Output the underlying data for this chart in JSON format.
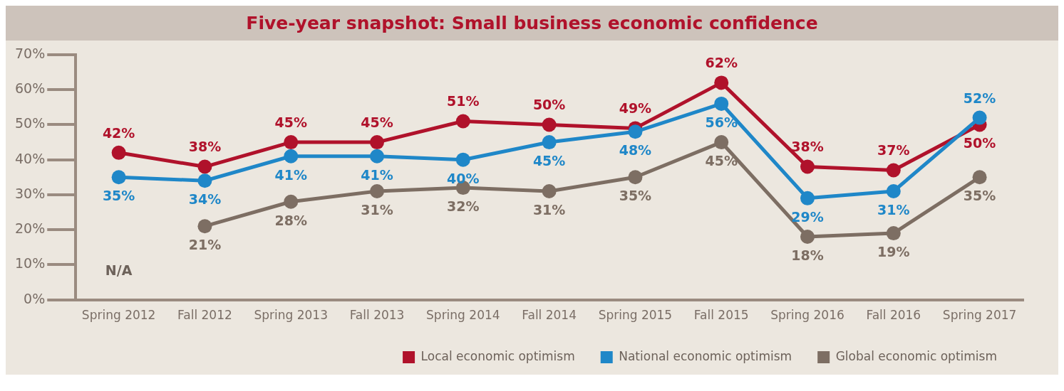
{
  "chart_data": {
    "type": "line",
    "title": "Five-year snapshot: Small business economic confidence",
    "categories": [
      "Spring 2012",
      "Fall 2012",
      "Spring 2013",
      "Fall 2013",
      "Spring 2014",
      "Fall 2014",
      "Spring 2015",
      "Fall 2015",
      "Spring 2016",
      "Fall 2016",
      "Spring 2017"
    ],
    "series": [
      {
        "name": "Local economic optimism",
        "color": "#b0122b",
        "values": [
          42,
          38,
          45,
          45,
          51,
          50,
          49,
          62,
          38,
          37,
          50
        ],
        "value_labels": [
          "42%",
          "38%",
          "45%",
          "45%",
          "51%",
          "50%",
          "49%",
          "62%",
          "38%",
          "37%",
          "50%"
        ]
      },
      {
        "name": "National economic optimism",
        "color": "#1f87c8",
        "values": [
          35,
          34,
          41,
          41,
          40,
          45,
          48,
          56,
          29,
          31,
          52
        ],
        "value_labels": [
          "35%",
          "34%",
          "41%",
          "41%",
          "40%",
          "45%",
          "48%",
          "56%",
          "29%",
          "31%",
          "52%"
        ]
      },
      {
        "name": "Global economic optimism",
        "color": "#7d6e63",
        "values": [
          null,
          21,
          28,
          31,
          32,
          31,
          35,
          45,
          18,
          19,
          35
        ],
        "value_labels": [
          null,
          "21%",
          "28%",
          "31%",
          "32%",
          "31%",
          "35%",
          "45%",
          "18%",
          "19%",
          "35%"
        ]
      }
    ],
    "annotations": [
      "N/A"
    ],
    "ylim": [
      0,
      70
    ],
    "yticks": [
      {
        "value": 0,
        "label": "0%"
      },
      {
        "value": 10,
        "label": "10%"
      },
      {
        "value": 20,
        "label": "20%"
      },
      {
        "value": 30,
        "label": "30%"
      },
      {
        "value": 40,
        "label": "40%"
      },
      {
        "value": 50,
        "label": "50%"
      },
      {
        "value": 60,
        "label": "60%"
      },
      {
        "value": 70,
        "label": "70%"
      }
    ],
    "grid": false,
    "legend": "bottom right",
    "marker": "circle",
    "line_style": "solid"
  }
}
